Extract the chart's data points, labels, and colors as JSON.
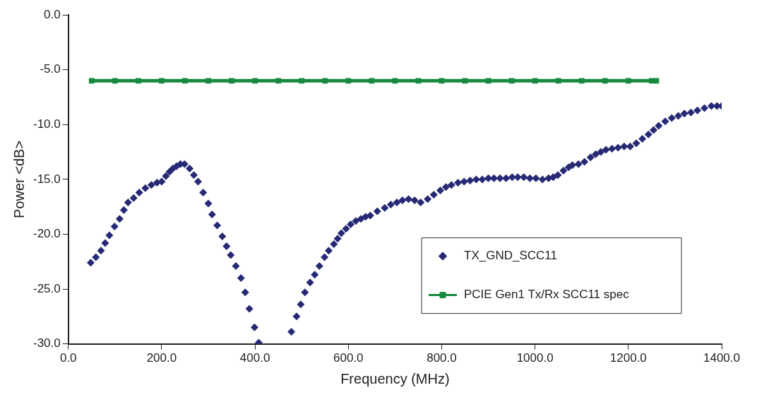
{
  "chart_data": {
    "type": "scatter",
    "xlabel": "Frequency (MHz)",
    "ylabel": "Power <dB>",
    "xlim": [
      0,
      1400
    ],
    "ylim": [
      -30,
      0
    ],
    "xticks": [
      {
        "value": 0,
        "label": "0.0"
      },
      {
        "value": 200,
        "label": "200.0"
      },
      {
        "value": 400,
        "label": "400.0"
      },
      {
        "value": 600,
        "label": "600.0"
      },
      {
        "value": 800,
        "label": "800.0"
      },
      {
        "value": 1000,
        "label": "1000.0"
      },
      {
        "value": 1200,
        "label": "1200.0"
      },
      {
        "value": 1400,
        "label": "1400.0"
      }
    ],
    "yticks": [
      {
        "value": 0,
        "label": "0.0"
      },
      {
        "value": -5,
        "label": "-5.0"
      },
      {
        "value": -10,
        "label": "-10.0"
      },
      {
        "value": -15,
        "label": "-15.0"
      },
      {
        "value": -20,
        "label": "-20.0"
      },
      {
        "value": -25,
        "label": "-25.0"
      },
      {
        "value": -30,
        "label": "-30.0"
      }
    ],
    "grid": false,
    "legend": "bottom right",
    "series": [
      {
        "name": "TX_GND_SCC11",
        "type": "scatter",
        "marker": "diamond",
        "color": "#262a75",
        "x": [
          48,
          59,
          70,
          79,
          88,
          99,
          110,
          119,
          128,
          140,
          152,
          165,
          178,
          190,
          200,
          209,
          217,
          224,
          232,
          240,
          249,
          260,
          269,
          278,
          289,
          300,
          308,
          319,
          330,
          339,
          348,
          359,
          370,
          379,
          388,
          399,
          408,
          478,
          489,
          498,
          507,
          518,
          528,
          538,
          549,
          558,
          569,
          577,
          585,
          595,
          605,
          616,
          627,
          637,
          647,
          662,
          678,
          691,
          704,
          716,
          729,
          742,
          755,
          770,
          783,
          797,
          809,
          821,
          835,
          848,
          861,
          874,
          887,
          900,
          912,
          925,
          938,
          951,
          963,
          976,
          989,
          1002,
          1016,
          1029,
          1039,
          1049,
          1061,
          1072,
          1080,
          1093,
          1106,
          1119,
          1130,
          1141,
          1152,
          1165,
          1178,
          1191,
          1204,
          1217,
          1230,
          1243,
          1254,
          1265,
          1279,
          1293,
          1307,
          1320,
          1334,
          1348,
          1363,
          1378,
          1390,
          1400
        ],
        "values": [
          -22.6,
          -22.1,
          -21.5,
          -20.8,
          -20.1,
          -19.3,
          -18.6,
          -17.8,
          -17.1,
          -16.7,
          -16.2,
          -15.8,
          -15.5,
          -15.3,
          -15.2,
          -14.7,
          -14.3,
          -14.0,
          -13.8,
          -13.6,
          -13.6,
          -14.0,
          -14.6,
          -15.2,
          -16.2,
          -17.2,
          -18.2,
          -19.2,
          -20.2,
          -21.1,
          -21.9,
          -22.9,
          -24.0,
          -25.3,
          -26.8,
          -28.5,
          -29.9,
          -28.9,
          -27.5,
          -26.4,
          -25.3,
          -24.4,
          -23.7,
          -22.9,
          -22.1,
          -21.5,
          -20.9,
          -20.4,
          -19.9,
          -19.5,
          -19.1,
          -18.8,
          -18.6,
          -18.4,
          -18.3,
          -17.9,
          -17.6,
          -17.3,
          -17.1,
          -16.9,
          -16.8,
          -16.9,
          -17.1,
          -16.8,
          -16.4,
          -16.0,
          -15.7,
          -15.5,
          -15.3,
          -15.2,
          -15.1,
          -15.0,
          -15.0,
          -14.9,
          -14.9,
          -14.9,
          -14.9,
          -14.8,
          -14.8,
          -14.8,
          -14.9,
          -14.9,
          -15.0,
          -14.9,
          -14.8,
          -14.6,
          -14.2,
          -13.9,
          -13.7,
          -13.6,
          -13.4,
          -13.0,
          -12.7,
          -12.5,
          -12.3,
          -12.2,
          -12.1,
          -12.0,
          -12.0,
          -11.7,
          -11.3,
          -10.9,
          -10.5,
          -10.1,
          -9.7,
          -9.4,
          -9.2,
          -9.0,
          -8.9,
          -8.7,
          -8.5,
          -8.3,
          -8.3,
          -8.3
        ]
      },
      {
        "name": "PCIE Gen1 Tx/Rx SCC11 spec",
        "type": "line",
        "marker": "square",
        "line_style": "solid",
        "color": "#178a3e",
        "x": [
          50,
          100,
          150,
          200,
          250,
          300,
          350,
          400,
          450,
          500,
          550,
          600,
          650,
          700,
          750,
          800,
          850,
          900,
          950,
          1000,
          1050,
          1100,
          1150,
          1200,
          1250,
          1260
        ],
        "values": [
          -6,
          -6,
          -6,
          -6,
          -6,
          -6,
          -6,
          -6,
          -6,
          -6,
          -6,
          -6,
          -6,
          -6,
          -6,
          -6,
          -6,
          -6,
          -6,
          -6,
          -6,
          -6,
          -6,
          -6,
          -6,
          -6
        ]
      }
    ]
  }
}
